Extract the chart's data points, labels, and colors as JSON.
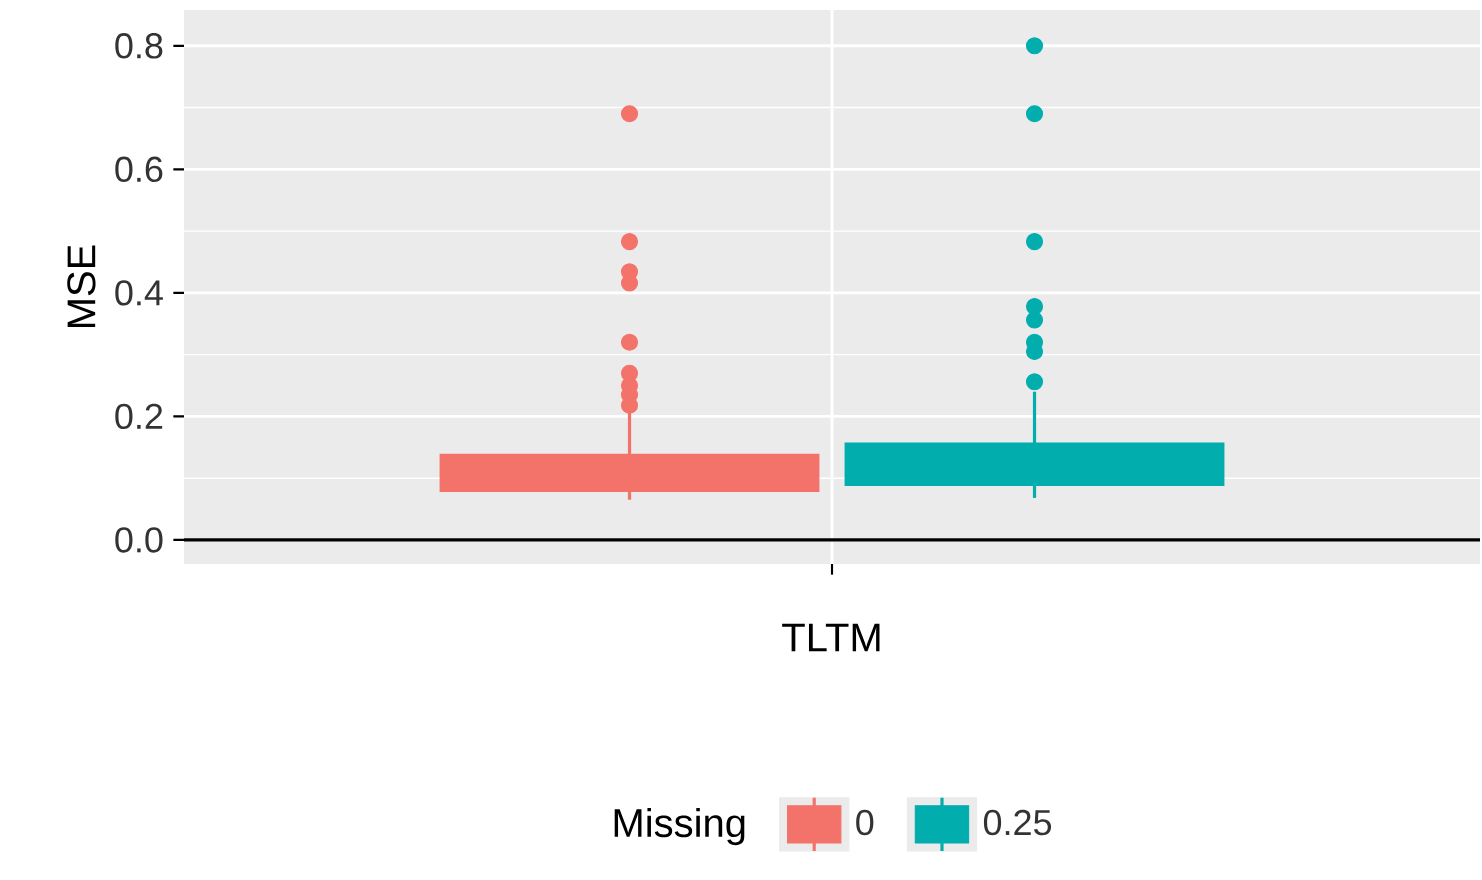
{
  "chart_data": {
    "type": "box",
    "xlabel": "TLTM",
    "ylabel": "MSE",
    "legend_title": "Missing",
    "categories": [
      null
    ],
    "ylim": [
      -0.039,
      0.858
    ],
    "yticks": [
      {
        "value": 0,
        "label": "0.0"
      },
      0.2,
      0.4,
      0.6,
      0.8
    ],
    "grid": true,
    "legend": "bottom",
    "tick_labels": "y",
    "ref_lines": [
      {
        "axis": "y",
        "value": 0,
        "color": "#000000"
      }
    ],
    "series": [
      {
        "name": "0",
        "color": "#f3736a",
        "boxes": [
          {
            "low": 0.065,
            "q1": 0.08,
            "median": 0.1,
            "q3": 0.137,
            "high": 0.21,
            "outliers": [
              0.218,
              0.235,
              0.25,
              0.27,
              0.32,
              0.416,
              0.434,
              0.483,
              0.69
            ]
          }
        ]
      },
      {
        "name": "0.25",
        "color": "#02adae",
        "boxes": [
          {
            "low": 0.068,
            "q1": 0.09,
            "median": 0.12,
            "q3": 0.155,
            "high": 0.24,
            "outliers": [
              0.256,
              0.305,
              0.32,
              0.356,
              0.378,
              0.483,
              0.69,
              0.8
            ]
          }
        ]
      }
    ]
  }
}
